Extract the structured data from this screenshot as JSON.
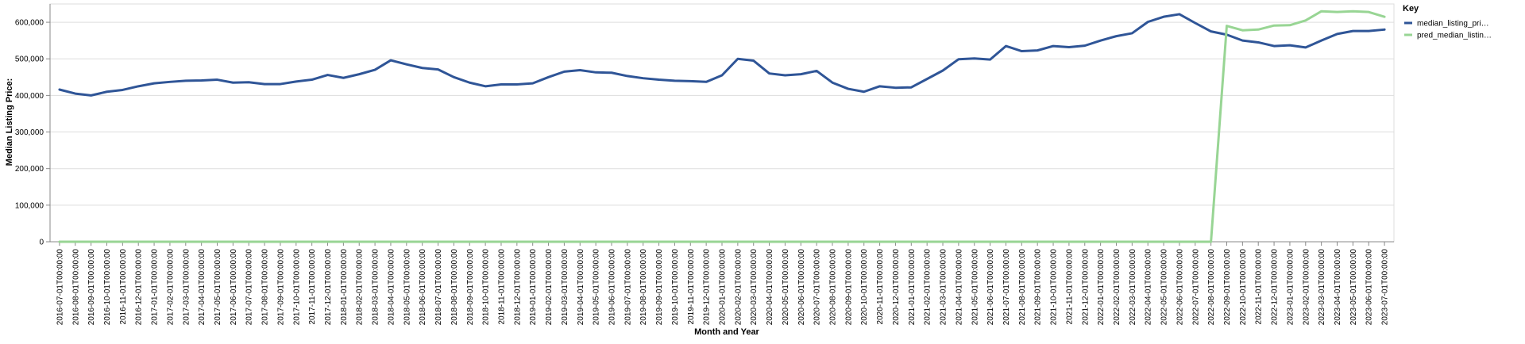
{
  "chart_data": {
    "type": "line",
    "title": "",
    "xlabel": "Month and Year",
    "ylabel": "Median Listing Price:",
    "ylim": [
      0,
      650000
    ],
    "yticks": [
      0,
      100000,
      200000,
      300000,
      400000,
      500000,
      600000
    ],
    "ytick_labels": [
      "0",
      "100,000",
      "200,000",
      "300,000",
      "400,000",
      "500,000",
      "600,000"
    ],
    "grid": true,
    "legend_position": "top-right",
    "legend_title": "Key",
    "x": [
      "2016-07-01T00:00:00",
      "2016-08-01T00:00:00",
      "2016-09-01T00:00:00",
      "2016-10-01T00:00:00",
      "2016-11-01T00:00:00",
      "2016-12-01T00:00:00",
      "2017-01-01T00:00:00",
      "2017-02-01T00:00:00",
      "2017-03-01T00:00:00",
      "2017-04-01T00:00:00",
      "2017-05-01T00:00:00",
      "2017-06-01T00:00:00",
      "2017-07-01T00:00:00",
      "2017-08-01T00:00:00",
      "2017-09-01T00:00:00",
      "2017-10-01T00:00:00",
      "2017-11-01T00:00:00",
      "2017-12-01T00:00:00",
      "2018-01-01T00:00:00",
      "2018-02-01T00:00:00",
      "2018-03-01T00:00:00",
      "2018-04-01T00:00:00",
      "2018-05-01T00:00:00",
      "2018-06-01T00:00:00",
      "2018-07-01T00:00:00",
      "2018-08-01T00:00:00",
      "2018-09-01T00:00:00",
      "2018-10-01T00:00:00",
      "2018-11-01T00:00:00",
      "2018-12-01T00:00:00",
      "2019-01-01T00:00:00",
      "2019-02-01T00:00:00",
      "2019-03-01T00:00:00",
      "2019-04-01T00:00:00",
      "2019-05-01T00:00:00",
      "2019-06-01T00:00:00",
      "2019-07-01T00:00:00",
      "2019-08-01T00:00:00",
      "2019-09-01T00:00:00",
      "2019-10-01T00:00:00",
      "2019-11-01T00:00:00",
      "2019-12-01T00:00:00",
      "2020-01-01T00:00:00",
      "2020-02-01T00:00:00",
      "2020-03-01T00:00:00",
      "2020-04-01T00:00:00",
      "2020-05-01T00:00:00",
      "2020-06-01T00:00:00",
      "2020-07-01T00:00:00",
      "2020-08-01T00:00:00",
      "2020-09-01T00:00:00",
      "2020-10-01T00:00:00",
      "2020-11-01T00:00:00",
      "2020-12-01T00:00:00",
      "2021-01-01T00:00:00",
      "2021-02-01T00:00:00",
      "2021-03-01T00:00:00",
      "2021-04-01T00:00:00",
      "2021-05-01T00:00:00",
      "2021-06-01T00:00:00",
      "2021-07-01T00:00:00",
      "2021-08-01T00:00:00",
      "2021-09-01T00:00:00",
      "2021-10-01T00:00:00",
      "2021-11-01T00:00:00",
      "2021-12-01T00:00:00",
      "2022-01-01T00:00:00",
      "2022-02-01T00:00:00",
      "2022-03-01T00:00:00",
      "2022-04-01T00:00:00",
      "2022-05-01T00:00:00",
      "2022-06-01T00:00:00",
      "2022-07-01T00:00:00",
      "2022-08-01T00:00:00",
      "2022-09-01T00:00:00",
      "2022-10-01T00:00:00",
      "2022-11-01T00:00:00",
      "2022-12-01T00:00:00",
      "2023-01-01T00:00:00",
      "2023-02-01T00:00:00",
      "2023-03-01T00:00:00",
      "2023-04-01T00:00:00",
      "2023-05-01T00:00:00",
      "2023-06-01T00:00:00",
      "2023-07-01T00:00:00"
    ],
    "series": [
      {
        "name": "median_listing_pri…",
        "color": "#2f5597",
        "values": [
          416000,
          405000,
          400000,
          410000,
          415000,
          425000,
          433000,
          437000,
          440000,
          441000,
          443000,
          435000,
          436000,
          431000,
          431000,
          438000,
          443000,
          456000,
          448000,
          458000,
          470000,
          496000,
          485000,
          475000,
          471000,
          450000,
          435000,
          425000,
          430000,
          430000,
          433000,
          450000,
          465000,
          469000,
          463000,
          462000,
          453000,
          447000,
          443000,
          440000,
          439000,
          437000,
          455000,
          500000,
          495000,
          460000,
          455000,
          458000,
          467000,
          435000,
          418000,
          410000,
          425000,
          421000,
          422000,
          445000,
          468000,
          499000,
          501000,
          498000,
          535000,
          521000,
          523000,
          535000,
          532000,
          536000,
          550000,
          562000,
          570000,
          601000,
          615000,
          622000,
          598000,
          575000,
          566000,
          550000,
          545000,
          535000,
          537000,
          531000,
          550000,
          568000,
          576000,
          576000,
          580000
        ]
      },
      {
        "name": "pred_median_listin…",
        "color": "#98d594",
        "values": [
          0,
          0,
          0,
          0,
          0,
          0,
          0,
          0,
          0,
          0,
          0,
          0,
          0,
          0,
          0,
          0,
          0,
          0,
          0,
          0,
          0,
          0,
          0,
          0,
          0,
          0,
          0,
          0,
          0,
          0,
          0,
          0,
          0,
          0,
          0,
          0,
          0,
          0,
          0,
          0,
          0,
          0,
          0,
          0,
          0,
          0,
          0,
          0,
          0,
          0,
          0,
          0,
          0,
          0,
          0,
          0,
          0,
          0,
          0,
          0,
          0,
          0,
          0,
          0,
          0,
          0,
          0,
          0,
          0,
          0,
          0,
          0,
          0,
          0,
          590000,
          578000,
          580000,
          591000,
          592000,
          605000,
          630000,
          628000,
          630000,
          628000,
          615000
        ]
      }
    ]
  }
}
